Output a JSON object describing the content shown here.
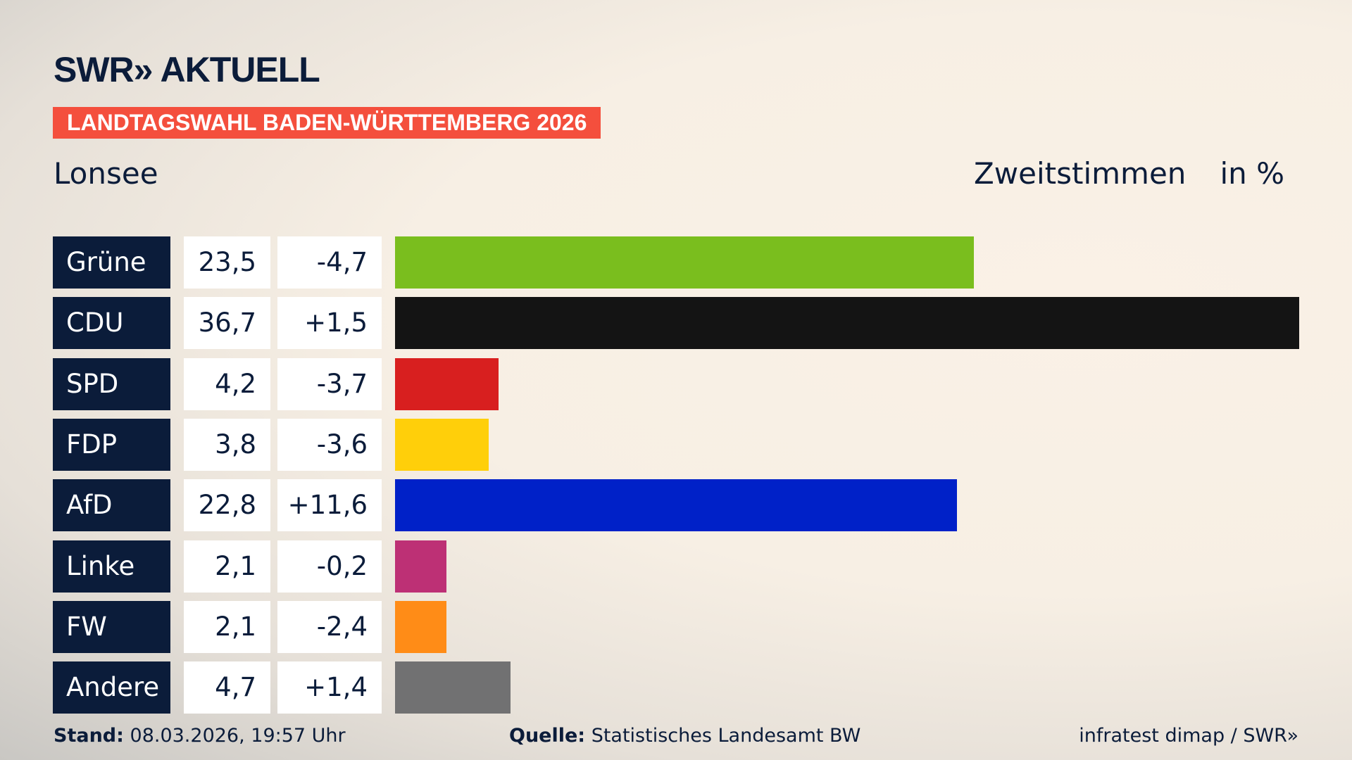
{
  "header": {
    "logo": "SWR» AKTUELL",
    "banner": "LANDTAGSWAHL BADEN-WÜRTTEMBERG 2026",
    "region": "Lonsee",
    "vote_type": "Zweitstimmen",
    "unit": "in %"
  },
  "chart_data": {
    "type": "bar",
    "orientation": "horizontal",
    "categories": [
      "Grüne",
      "CDU",
      "SPD",
      "FDP",
      "AfD",
      "Linke",
      "FW",
      "Andere"
    ],
    "values": [
      23.5,
      36.7,
      4.2,
      3.8,
      22.8,
      2.1,
      2.1,
      4.7
    ],
    "value_labels": [
      "23,5",
      "36,7",
      "4,2",
      "3,8",
      "22,8",
      "2,1",
      "2,1",
      "4,7"
    ],
    "diff_labels": [
      "-4,7",
      "+1,5",
      "-3,7",
      "-3,6",
      "+11,6",
      "-0,2",
      "-2,4",
      "+1,4"
    ],
    "diffs": [
      -4.7,
      1.5,
      -3.7,
      -3.6,
      11.6,
      -0.2,
      -2.4,
      1.4
    ],
    "colors": [
      "#7abe1e",
      "#141414",
      "#d81f1f",
      "#ffcf0a",
      "#0021c8",
      "#bd3075",
      "#ff8c17",
      "#717172"
    ],
    "title": "Zweitstimmen",
    "ylabel": "in %",
    "grid": false
  },
  "footer": {
    "stand_label": "Stand:",
    "stand_value": "08.03.2026, 19:57 Uhr",
    "source_label": "Quelle:",
    "source_value": "Statistisches Landesamt BW",
    "credit": "infratest dimap / SWR»"
  }
}
